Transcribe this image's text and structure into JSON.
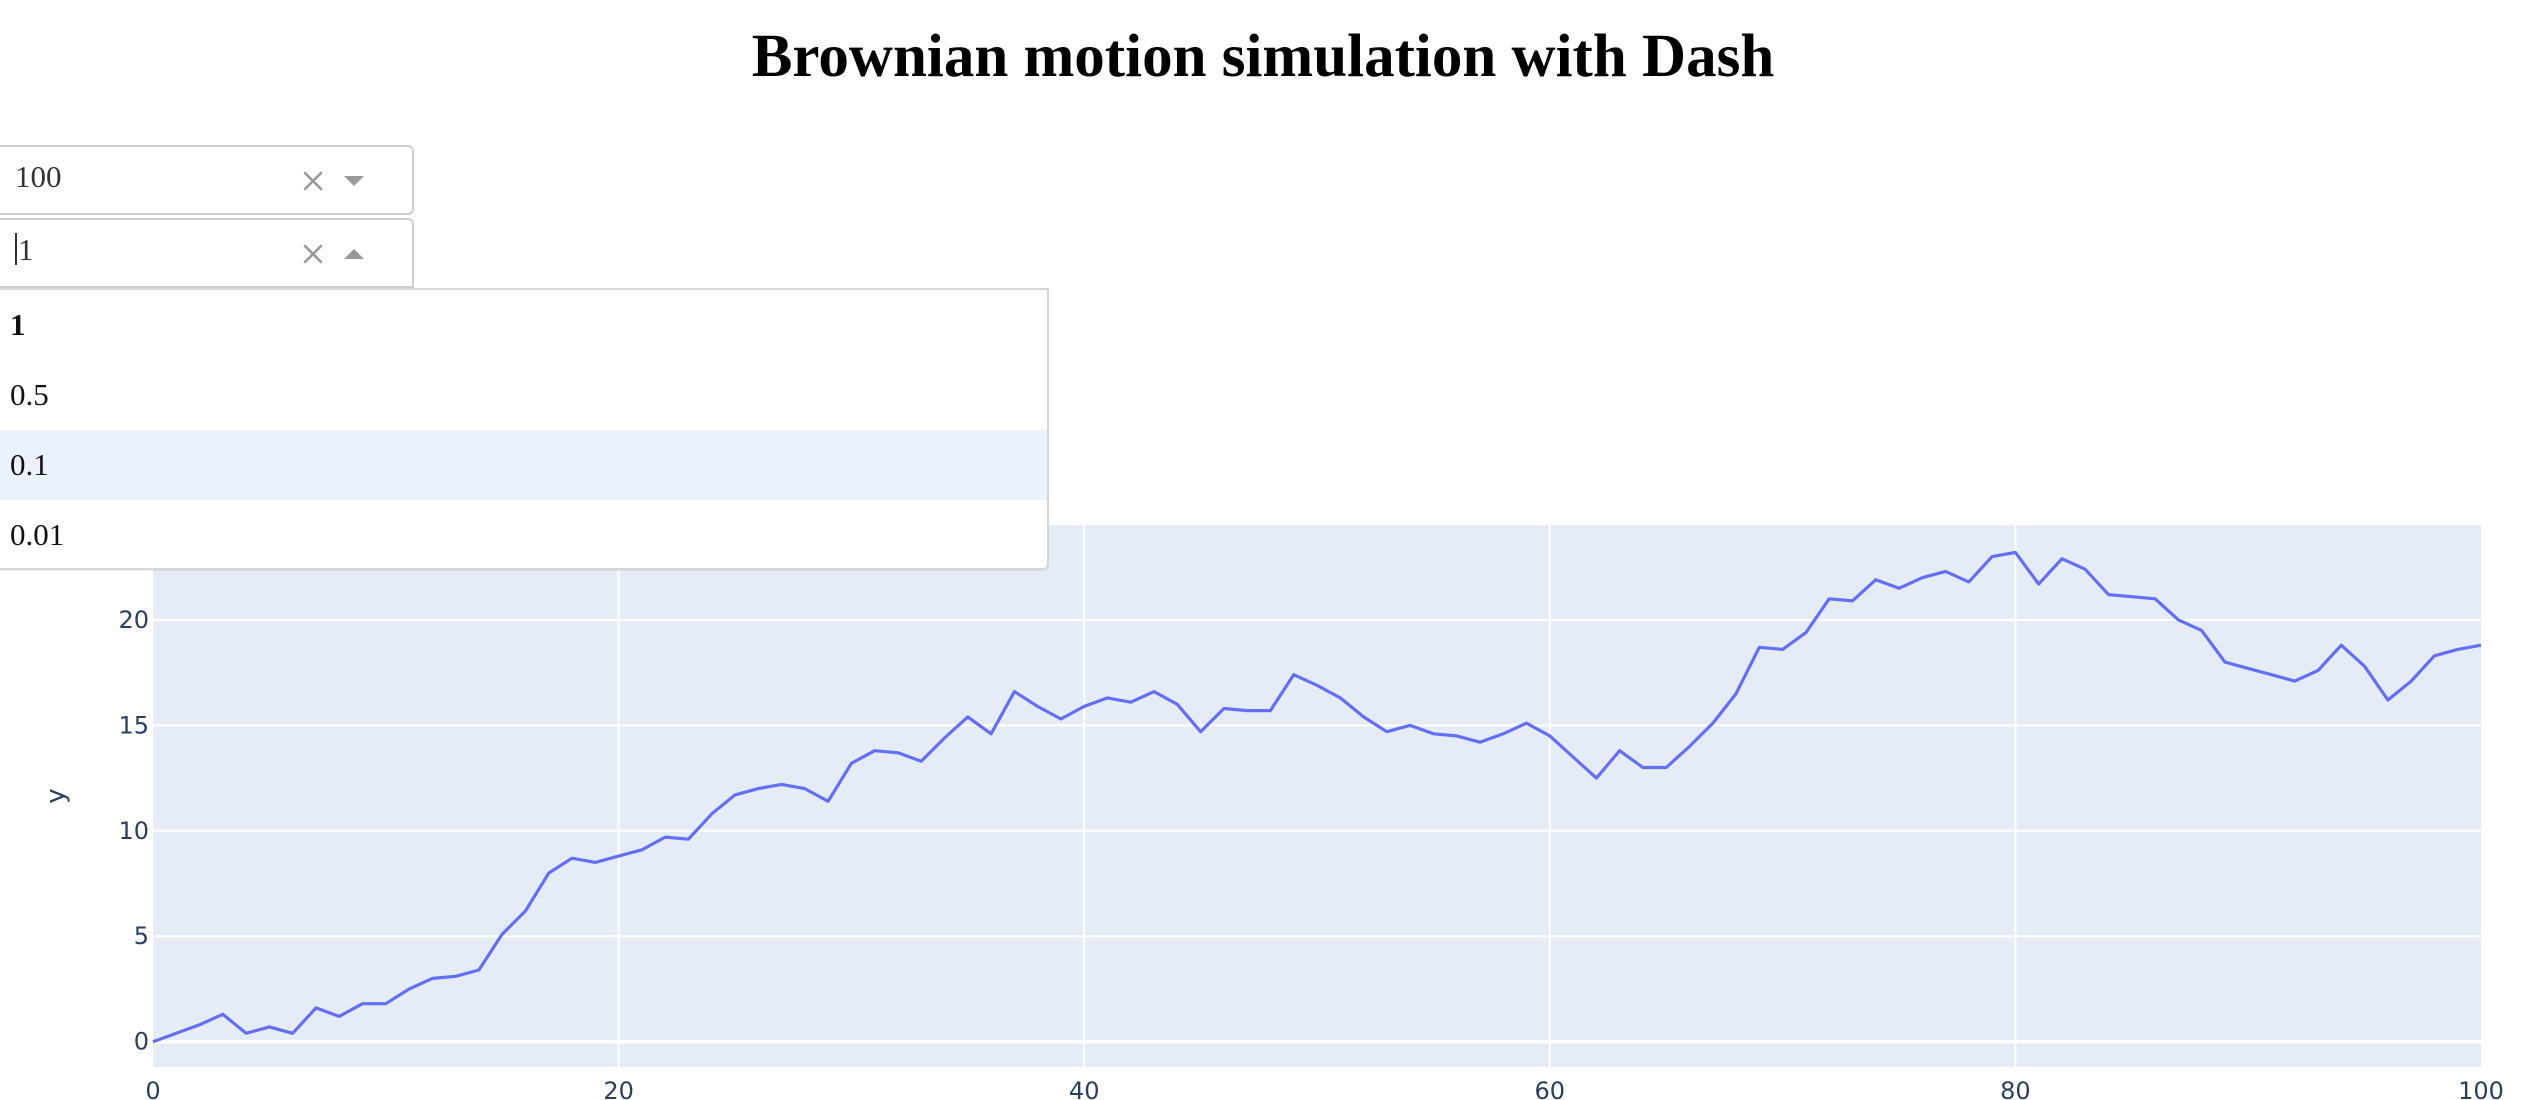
{
  "page": {
    "title": "Brownian motion simulation with Dash"
  },
  "dropdown_steps": {
    "value": "100"
  },
  "dropdown_delta": {
    "value": "1",
    "options": [
      "1",
      "0.5",
      "0.1",
      "0.01"
    ],
    "selected": "1",
    "focused": "0.1",
    "open": true
  },
  "icons": {
    "clear": "close-icon",
    "toggle_closed": "caret-down-icon",
    "toggle_open": "caret-up-icon"
  },
  "chart_data": {
    "type": "line",
    "xlabel": "",
    "ylabel": "y",
    "xlim": [
      0,
      100
    ],
    "ylim": [
      -1.2,
      24.5
    ],
    "x_ticks": [
      0,
      20,
      40,
      60,
      80,
      100
    ],
    "y_ticks": [
      0,
      5,
      10,
      15,
      20
    ],
    "grid": true,
    "colors": {
      "line": "#636efa",
      "plot_bg": "#e5ecf6",
      "grid": "#ffffff",
      "tick_text": "#2a3f5f"
    },
    "series": [
      {
        "x": [
          0,
          1,
          2,
          3,
          4,
          5,
          6,
          7,
          8,
          9,
          10,
          11,
          12,
          13,
          14,
          15,
          16,
          17,
          18,
          19,
          20,
          21,
          22,
          23,
          24,
          25,
          26,
          27,
          28,
          29,
          30,
          31,
          32,
          33,
          34,
          35,
          36,
          37,
          38,
          39,
          40,
          41,
          42,
          43,
          44,
          45,
          46,
          47,
          48,
          49,
          50,
          51,
          52,
          53,
          54,
          55,
          56,
          57,
          58,
          59,
          60,
          61,
          62,
          63,
          64,
          65,
          66,
          67,
          68,
          69,
          70,
          71,
          72,
          73,
          74,
          75,
          76,
          77,
          78,
          79,
          80,
          81,
          82,
          83,
          84,
          85,
          86,
          87,
          88,
          89,
          90,
          91,
          92,
          93,
          94,
          95,
          96,
          97,
          98,
          99,
          100
        ],
        "y": [
          0,
          0.4,
          0.8,
          1.3,
          0.4,
          0.7,
          0.4,
          1.6,
          1.2,
          1.8,
          1.8,
          2.5,
          3.0,
          3.1,
          3.4,
          5.1,
          6.2,
          8.0,
          8.7,
          8.5,
          8.8,
          9.1,
          9.7,
          9.6,
          10.8,
          11.7,
          12.0,
          12.2,
          12.0,
          11.4,
          13.2,
          13.8,
          13.7,
          13.3,
          14.4,
          15.4,
          14.6,
          16.6,
          15.9,
          15.3,
          15.9,
          16.3,
          16.1,
          16.6,
          16.0,
          14.7,
          15.8,
          15.7,
          15.7,
          17.4,
          16.9,
          16.3,
          15.4,
          14.7,
          15.0,
          14.6,
          14.5,
          14.2,
          14.6,
          15.1,
          14.5,
          13.5,
          12.5,
          13.8,
          13.0,
          13.0,
          14.0,
          15.1,
          16.5,
          18.7,
          18.6,
          19.4,
          21.0,
          20.9,
          21.9,
          21.5,
          22.0,
          22.3,
          21.8,
          23.0,
          23.2,
          21.7,
          22.9,
          22.4,
          21.2,
          21.1,
          21.0,
          20.0,
          19.5,
          18.0,
          17.7,
          17.4,
          17.1,
          17.6,
          18.8,
          17.8,
          16.2,
          17.1,
          18.3,
          18.6,
          18.8
        ]
      }
    ]
  }
}
